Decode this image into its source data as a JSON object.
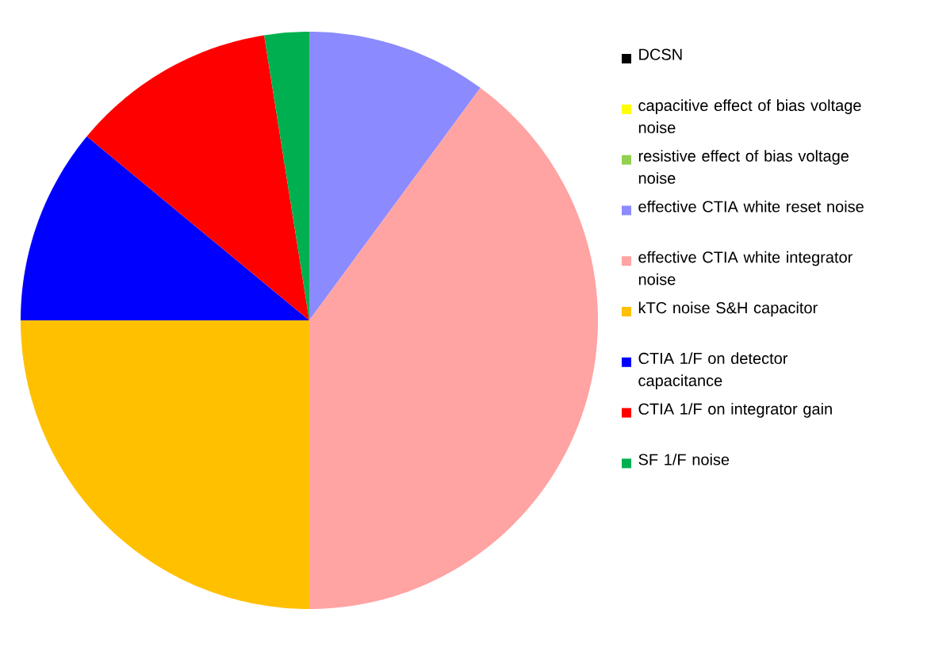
{
  "chart_data": {
    "type": "pie",
    "legend": "right",
    "categories": [
      "DCSN",
      "capacitive effect of bias voltage noise",
      "resistive effect of bias voltage noise",
      "effective CTIA white reset noise",
      "effective CTIA white integrator noise",
      "kTC noise S&H capacitor",
      "CTIA 1/F on detector capacitance",
      "CTIA 1/F on integrator gain",
      "SF 1/F noise"
    ],
    "values": [
      0,
      0,
      0,
      10.1,
      39.9,
      25,
      11,
      11.5,
      2.5
    ],
    "colors": [
      "#000000",
      "#ffff00",
      "#92d050",
      "#8b8bff",
      "#ffa3a3",
      "#ffc000",
      "#0000ff",
      "#ff0000",
      "#00b050"
    ]
  }
}
